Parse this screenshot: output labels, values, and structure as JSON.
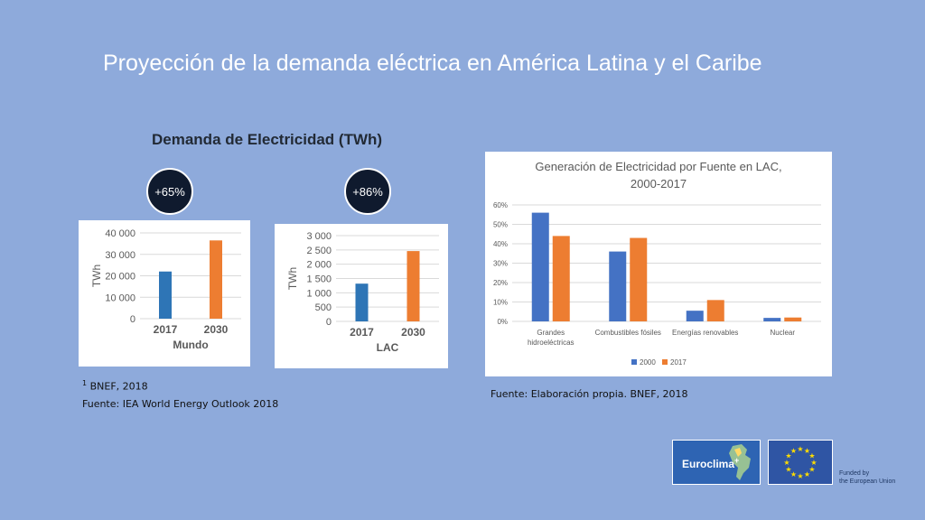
{
  "slide": {
    "title": "Proyección de la demanda eléctrica en América Latina y el Caribe"
  },
  "left_section": {
    "heading": "Demanda de Electricidad (TWh)",
    "badges": [
      "+65%",
      "+86%"
    ],
    "footnote_marker": "1",
    "footnote_text": "BNEF, 2018",
    "source": "Fuente: IEA World Energy Outlook 2018"
  },
  "right_section": {
    "source": "Fuente: Elaboración propia. BNEF, 2018"
  },
  "logos": {
    "euroclima_text": "Euroclima",
    "euroclima_plus": "+",
    "funded_line1": "Funded by",
    "funded_line2": "the European Union"
  },
  "colors": {
    "background": "#8eaadb",
    "series_2000": "#4472c4",
    "series_2017": "#ed7d31",
    "bar_2017": "#2e75b6",
    "bar_2030": "#ed7d31",
    "badge": "#0f1a2e"
  },
  "chart_data": [
    {
      "type": "bar",
      "categories": [
        "2017",
        "2030"
      ],
      "values": [
        22000,
        36500
      ],
      "xlabel": "Mundo",
      "ylabel": "TWh",
      "ylim": [
        0,
        40000
      ],
      "yticks": [
        "0",
        "10 000",
        "20 000",
        "30 000",
        "40 000"
      ],
      "grid": true
    },
    {
      "type": "bar",
      "categories": [
        "2017",
        "2030"
      ],
      "values": [
        1320,
        2460
      ],
      "xlabel": "LAC",
      "ylabel": "TWh",
      "ylim": [
        0,
        3000
      ],
      "yticks": [
        "0",
        "500",
        "1 000",
        "1 500",
        "2 000",
        "2 500",
        "3 000"
      ],
      "grid": true
    },
    {
      "type": "bar",
      "title": "Generación de Electricidad por Fuente en LAC, 2000-2017",
      "title_line1": "Generación de Electricidad por Fuente en LAC,",
      "title_line2": "2000-2017",
      "categories": [
        "Grandes hidroeléctricas",
        "Combustibles fósiles",
        "Energías renovables",
        "Nuclear"
      ],
      "category_lines": [
        [
          "Grandes",
          "hidroeléctricas"
        ],
        [
          "Combustibles fósiles"
        ],
        [
          "Energías renovables"
        ],
        [
          "Nuclear"
        ]
      ],
      "series": [
        {
          "name": "2000",
          "values": [
            0.56,
            0.36,
            0.055,
            0.018
          ]
        },
        {
          "name": "2017",
          "values": [
            0.44,
            0.43,
            0.11,
            0.02
          ]
        }
      ],
      "ylim": [
        0,
        0.6
      ],
      "yticks": [
        "0%",
        "10%",
        "20%",
        "30%",
        "40%",
        "50%",
        "60%"
      ],
      "legend": "bottom",
      "grid": true
    }
  ]
}
